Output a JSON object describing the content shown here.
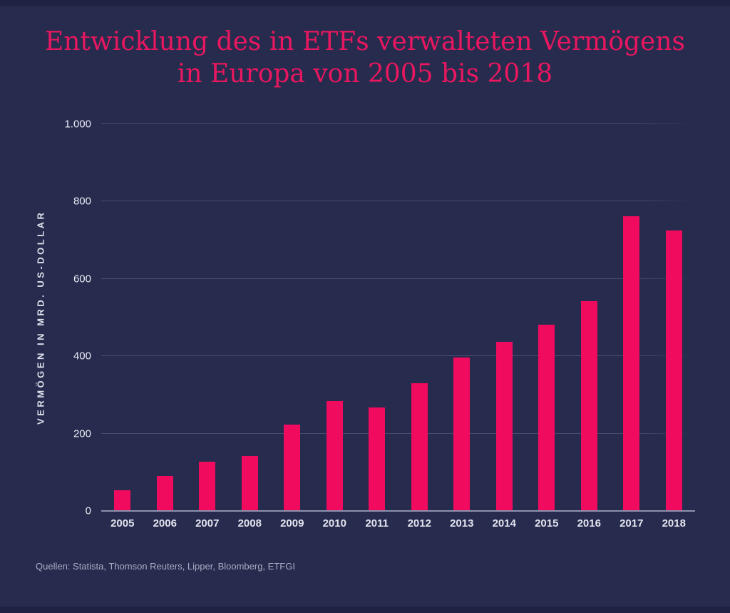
{
  "page": {
    "background_color": "#272b4e",
    "edge_band_color": "#1f2243"
  },
  "title": {
    "line1": "Entwicklung des in ETFs verwalteten Vermögens",
    "line2": "in Europa von 2005 bis 2018",
    "color": "#e8175f"
  },
  "chart_data": {
    "type": "bar",
    "title": "Entwicklung des in ETFs verwalteten Vermögens in Europa von 2005 bis 2018",
    "categories": [
      "2005",
      "2006",
      "2007",
      "2008",
      "2009",
      "2010",
      "2011",
      "2012",
      "2013",
      "2014",
      "2015",
      "2016",
      "2017",
      "2018"
    ],
    "values": [
      54,
      90,
      128,
      143,
      224,
      284,
      267,
      331,
      396,
      438,
      481,
      542,
      762,
      726
    ],
    "unit": "Mrd. US-Dollar",
    "xlabel": "",
    "ylabel": "VERMÖGEN IN MRD. US-DOLLAR",
    "ylim": [
      0,
      1000
    ],
    "yticks": [
      {
        "value": 0,
        "label": "0"
      },
      {
        "value": 200,
        "label": "200"
      },
      {
        "value": 400,
        "label": "400"
      },
      {
        "value": 600,
        "label": "600"
      },
      {
        "value": 800,
        "label": "800"
      },
      {
        "value": 1000,
        "label": "1.000"
      }
    ],
    "grid": true,
    "legend_position": "none",
    "bar_color": "#f00b5e"
  },
  "source": {
    "text": "Quellen: Statista, Thomson Reuters, Lipper, Bloomberg, ETFGI"
  }
}
